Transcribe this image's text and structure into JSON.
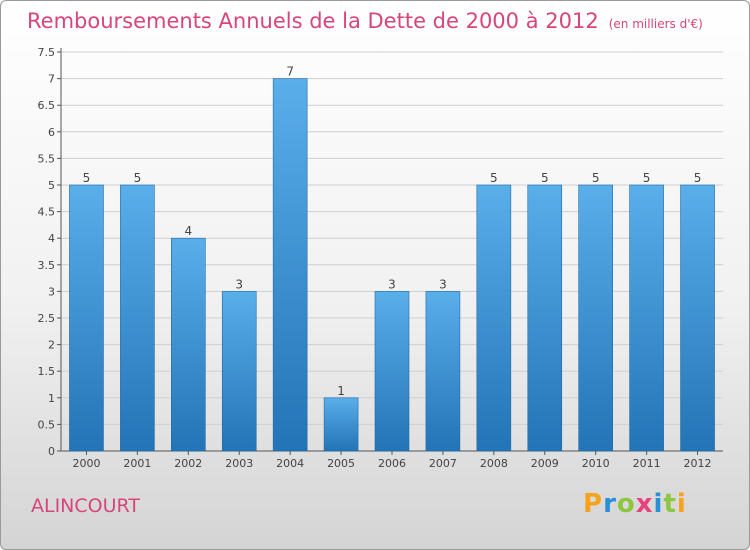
{
  "header": {
    "title": "Remboursements Annuels de la Dette de 2000 à 2012",
    "subtitle": "(en milliers d'€)"
  },
  "commune": "ALINCOURT",
  "brand": {
    "text": "Proxiti",
    "letter_colors": [
      "#f7a21b",
      "#2b8fd8",
      "#8dc63f",
      "#e8417b",
      "#2b8fd8",
      "#8dc63f",
      "#f7a21b"
    ]
  },
  "colors": {
    "title": "#d8457a",
    "bar_top": "#5aaeea",
    "bar_bottom": "#2374b6",
    "bar_edge": "#1f6aa8",
    "grid": "#cfcfcf"
  },
  "chart_data": {
    "type": "bar",
    "categories": [
      "2000",
      "2001",
      "2002",
      "2003",
      "2004",
      "2005",
      "2006",
      "2007",
      "2008",
      "2009",
      "2010",
      "2011",
      "2012"
    ],
    "values": [
      5,
      5,
      4,
      3,
      7,
      1,
      3,
      3,
      5,
      5,
      5,
      5,
      5
    ],
    "data_labels": [
      "5",
      "5",
      "4",
      "3",
      "7",
      "1",
      "3",
      "3",
      "5",
      "5",
      "5",
      "5",
      "5"
    ],
    "yticks": [
      "0",
      "0.5",
      "1",
      "1.5",
      "2",
      "2.5",
      "3",
      "3.5",
      "4",
      "4.5",
      "5",
      "5.5",
      "6",
      "6.5",
      "7",
      "7.5"
    ],
    "ylim": [
      0,
      7.5
    ],
    "grid": true
  }
}
